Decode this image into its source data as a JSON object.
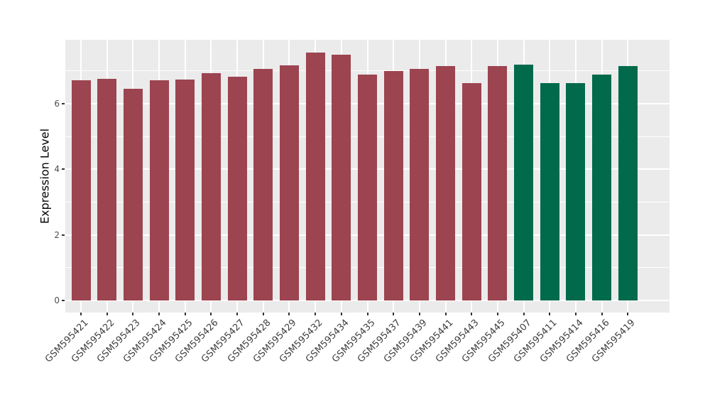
{
  "chart_data": {
    "type": "bar",
    "title": "",
    "xlabel": "",
    "ylabel": "Expression Level",
    "categories": [
      "GSM595421",
      "GSM595422",
      "GSM595423",
      "GSM595424",
      "GSM595425",
      "GSM595426",
      "GSM595427",
      "GSM595428",
      "GSM595429",
      "GSM595432",
      "GSM595434",
      "GSM595435",
      "GSM595437",
      "GSM595439",
      "GSM595441",
      "GSM595443",
      "GSM595445",
      "GSM595407",
      "GSM595411",
      "GSM595414",
      "GSM595416",
      "GSM595419"
    ],
    "values": [
      6.7,
      6.76,
      6.46,
      6.72,
      6.74,
      6.93,
      6.82,
      7.05,
      7.17,
      7.55,
      7.48,
      6.88,
      6.99,
      7.05,
      7.15,
      6.63,
      7.14,
      7.18,
      6.62,
      6.62,
      6.88,
      7.14
    ],
    "bar_colors": [
      "#9C4450",
      "#9C4450",
      "#9C4450",
      "#9C4450",
      "#9C4450",
      "#9C4450",
      "#9C4450",
      "#9C4450",
      "#9C4450",
      "#9C4450",
      "#9C4450",
      "#9C4450",
      "#9C4450",
      "#9C4450",
      "#9C4450",
      "#9C4450",
      "#9C4450",
      "#006A4B",
      "#006A4B",
      "#006A4B",
      "#006A4B",
      "#006A4B"
    ],
    "palette": {
      "maroon": "#9C4450",
      "green": "#006A4B"
    },
    "yticks": [
      0,
      2,
      4,
      6
    ],
    "minor_yticks": [
      1,
      3,
      5,
      7
    ],
    "ylim": [
      -0.38,
      7.94
    ],
    "grid": true,
    "legend_position": "none",
    "panel_bg": "#EBEBEB",
    "grid_color": "#FFFFFF"
  }
}
